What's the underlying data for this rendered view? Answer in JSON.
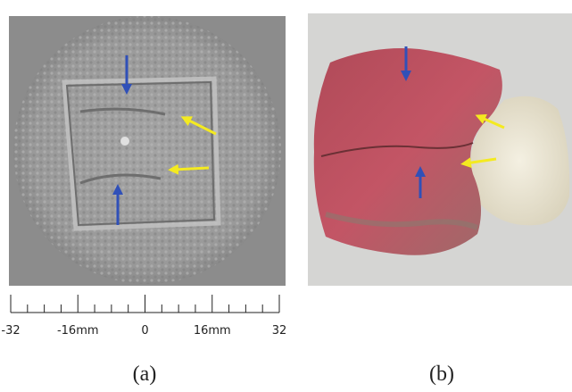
{
  "panels": [
    {
      "label": "(a)"
    },
    {
      "label": "(b)"
    }
  ],
  "scale": {
    "range": [
      -32,
      32
    ],
    "ticks": [
      {
        "value": -32,
        "label": "-32"
      },
      {
        "value": -16,
        "label": "-16mm"
      },
      0,
      {
        "value": 16,
        "label": "16mm"
      },
      32
    ]
  }
}
